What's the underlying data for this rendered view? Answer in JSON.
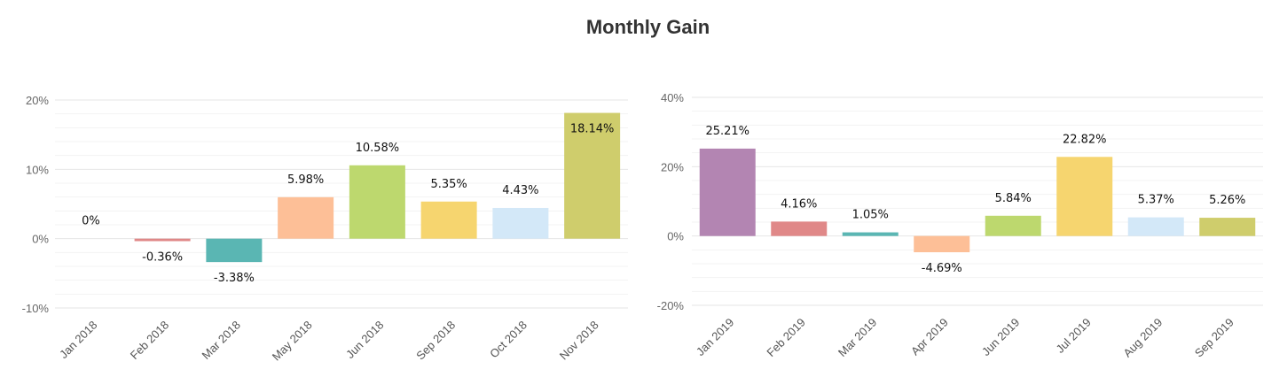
{
  "title": "Monthly Gain",
  "chart_data": [
    {
      "type": "bar",
      "title": "",
      "xlabel": "",
      "ylabel": "",
      "ylim": [
        -10,
        20
      ],
      "yticks": [
        -10,
        0,
        10,
        20
      ],
      "ytick_labels": [
        "-10%",
        "0%",
        "10%",
        "20%"
      ],
      "grid": true,
      "legend": "none",
      "categories": [
        "Jan 2018",
        "Feb 2018",
        "Mar 2018",
        "May 2018",
        "Jun 2018",
        "Sep 2018",
        "Oct 2018",
        "Nov 2018"
      ],
      "values": [
        0,
        -0.36,
        -3.38,
        5.98,
        10.58,
        5.35,
        4.43,
        18.14
      ],
      "value_labels": [
        "0%",
        "-0.36%",
        "-3.38%",
        "5.98%",
        "10.58%",
        "5.35%",
        "4.43%",
        "18.14%"
      ],
      "colors": [
        "#b385b2",
        "#e08888",
        "#5ab6b3",
        "#fdbf97",
        "#bdd86e",
        "#f6d56f",
        "#d3e8f8",
        "#cfcd6c"
      ]
    },
    {
      "type": "bar",
      "title": "",
      "xlabel": "",
      "ylabel": "",
      "ylim": [
        -20,
        40
      ],
      "yticks": [
        -20,
        0,
        20,
        40
      ],
      "ytick_labels": [
        "-20%",
        "0%",
        "20%",
        "40%"
      ],
      "grid": true,
      "legend": "none",
      "categories": [
        "Jan 2019",
        "Feb 2019",
        "Mar 2019",
        "Apr 2019",
        "Jun 2019",
        "Jul 2019",
        "Aug 2019",
        "Sep 2019"
      ],
      "values": [
        25.21,
        4.16,
        1.05,
        -4.69,
        5.84,
        22.82,
        5.37,
        5.26
      ],
      "value_labels": [
        "25.21%",
        "4.16%",
        "1.05%",
        "-4.69%",
        "5.84%",
        "22.82%",
        "5.37%",
        "5.26%"
      ],
      "colors": [
        "#b385b2",
        "#e08888",
        "#5ab6b3",
        "#fdbf97",
        "#bdd86e",
        "#f6d56f",
        "#d3e8f8",
        "#cfcd6c"
      ]
    }
  ]
}
